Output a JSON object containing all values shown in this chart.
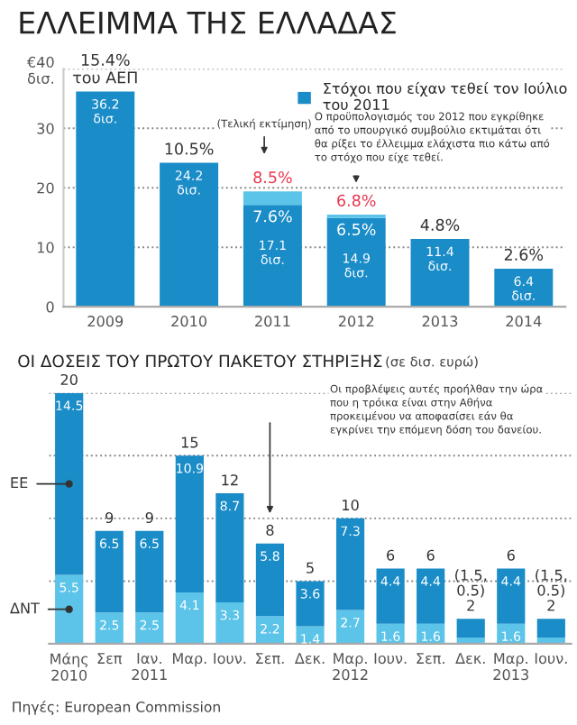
{
  "chart_data": [
    {
      "type": "bar",
      "title": "ΕΛΛΕΙΜΜΑ ΤΗΣ ΕΛΛΑΔΑΣ",
      "categories": [
        "2009",
        "2010",
        "2011",
        "2012",
        "2013",
        "2014"
      ],
      "stacked": true,
      "series": [
        {
          "name": "Στόχοι που είχαν τεθεί τον Ιούλιο\nτου 2011",
          "color": "#1a8cc8",
          "values": [
            36.2,
            24.2,
            17.1,
            14.9,
            11.4,
            6.4
          ],
          "value_labels": [
            "36.2\nδισ.",
            "24.2\nδισ.",
            "17.1\nδισ.",
            "14.9\nδισ.",
            "11.4\nδισ.",
            "6.4\nδισ."
          ]
        },
        {
          "color": "#5bc4e8",
          "values": [
            null,
            null,
            2.3,
            0.6,
            null,
            null
          ]
        }
      ],
      "ylim": [
        0,
        40
      ],
      "yticks": [
        0,
        10,
        20,
        30,
        {
          "value": 40,
          "label": "€40\nδισ."
        }
      ],
      "grid": "y",
      "legend": "top right",
      "annotations": [
        "(Τελική εκτίμηση)",
        "Ο προϋπολογισμός του 2012 που εγκρίθηκε\nαπό το υπουργικό συμβούλιο εκτιμάται ότι\nθα ρίξει το έλλειμμα ελάχιστα πιο κάτω από\nτο στόχο που είχε τεθεί.",
        {
          "text": "15.4%\nτου ΑΕΠ",
          "x": "2009",
          "y": 36.2
        },
        {
          "text": "10.5%",
          "x": "2010",
          "y": 24.2
        },
        {
          "text": "7.6%",
          "x": "2011",
          "y": 17.1
        },
        {
          "text": "8.5%",
          "x": "2011",
          "y": 19.4
        },
        {
          "text": "6.8%",
          "x": "2012",
          "y": 15.5
        },
        {
          "text": "6.5%",
          "x": "2012",
          "y": 14.9
        },
        {
          "text": "4.8%",
          "x": "2013",
          "y": 11.4
        },
        {
          "text": "2.6%",
          "x": "2014",
          "y": 6.4
        }
      ]
    },
    {
      "type": "bar",
      "title": "ΟΙ ΔΟΣΕΙΣ ΤΟΥ ΠΡΩΤΟΥ ΠΑΚΕΤΟΥ ΣΤΗΡΙΞΗΣ",
      "subtitle": "(σε δισ. ευρώ)",
      "categories": [
        "Μάης\n2010",
        "Σεπ",
        "Ιαν.\n2011",
        "Μαρ.",
        "Ιουν.",
        "Σεπ.",
        "Δεκ.",
        "Μαρ.\n2012",
        "Ιουν.",
        "Σεπ.",
        "Δεκ.",
        "Μαρ.\n2013",
        "Ιουν."
      ],
      "stacked": true,
      "series": [
        {
          "name": "ΔΝΤ",
          "color": "#5bc4e8",
          "values": [
            5.5,
            2.5,
            2.5,
            4.1,
            3.3,
            2.2,
            1.4,
            2.7,
            1.6,
            1.6,
            0.5,
            1.6,
            0.5
          ],
          "value_labels": [
            "5.5",
            "2.5",
            "2.5",
            "4.1",
            "3.3",
            "2.2",
            "1.4",
            "2.7",
            "1.6",
            "1.6",
            null,
            "1.6",
            null
          ]
        },
        {
          "name": "ΕΕ",
          "color": "#1a8cc8",
          "values": [
            14.5,
            6.5,
            6.5,
            10.9,
            8.7,
            5.8,
            3.6,
            7.3,
            4.4,
            4.4,
            1.5,
            4.4,
            1.5
          ],
          "value_labels": [
            "14.5",
            "6.5",
            "6.5",
            "10.9",
            "8.7",
            "5.8",
            "3.6",
            "7.3",
            "4.4",
            "4.4",
            null,
            "4.4",
            null
          ]
        }
      ],
      "totals": [
        "20",
        "9",
        "9",
        "15",
        "12",
        "8",
        "5",
        "10",
        "6",
        "6",
        "(1.5,\n0.5)\n2",
        "6",
        "(1.5,\n0.5)\n2"
      ],
      "ylim": [
        0,
        20
      ],
      "yticks": [
        {
          "value": 5,
          "label": null
        },
        {
          "value": 10,
          "label": null
        },
        {
          "value": 15,
          "label": null
        },
        {
          "value": 20,
          "label": null
        }
      ],
      "grid": "y",
      "tick_labels": "x",
      "annotations": [
        "Οι προβλέψεις αυτές προήλθαν την ώρα\nπου η τρόικα είναι στην Αθήνα\nπροκειμένου να αποφασίσει εάν θα\nεγκρίνει την επόμενη δόση του δανείου.",
        "Πηγές: European Commission"
      ]
    }
  ]
}
